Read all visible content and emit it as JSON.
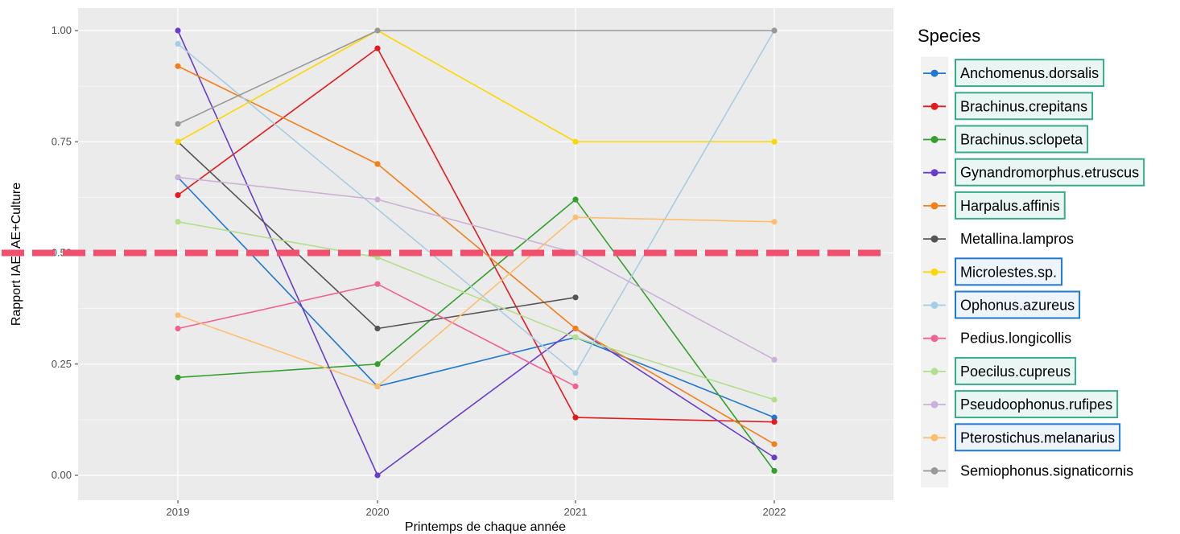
{
  "chart_data": {
    "type": "line",
    "x": [
      "2019",
      "2020",
      "2021",
      "2022"
    ],
    "xlabel": "Printemps de chaque année",
    "ylabel": "Rapport IAE/IAE+Culture",
    "ylim": [
      0,
      1
    ],
    "yticks": [
      "0.00",
      "0.25",
      "0.50",
      "0.75",
      "1.00"
    ],
    "grid": true,
    "reference_line": {
      "y": 0.5,
      "style": "dashed",
      "color": "#f0506e"
    },
    "legend": {
      "title": "Species",
      "position": "right"
    },
    "series": [
      {
        "name": "Anchomenus.dorsalis",
        "color": "#1f78d1",
        "values": [
          0.67,
          0.2,
          0.31,
          0.13
        ],
        "highlight": "green"
      },
      {
        "name": "Brachinus.crepitans",
        "color": "#e41a1c",
        "values": [
          0.63,
          0.96,
          0.13,
          0.12
        ],
        "highlight": "green"
      },
      {
        "name": "Brachinus.sclopeta",
        "color": "#33a02c",
        "values": [
          0.22,
          0.25,
          0.62,
          0.01
        ],
        "highlight": "green"
      },
      {
        "name": "Gynandromorphus.etruscus",
        "color": "#6a3dc9",
        "values": [
          1.0,
          0.0,
          0.33,
          0.04
        ],
        "highlight": "green"
      },
      {
        "name": "Harpalus.affinis",
        "color": "#f57f17",
        "values": [
          0.92,
          0.7,
          0.33,
          0.07
        ],
        "highlight": "green"
      },
      {
        "name": "Metallina.lampros",
        "color": "#555555",
        "values": [
          0.75,
          0.33,
          0.4,
          null
        ],
        "highlight": ""
      },
      {
        "name": "Microlestes.sp.",
        "color": "#ffd700",
        "values": [
          0.75,
          1.0,
          0.75,
          0.75
        ],
        "highlight": "blue"
      },
      {
        "name": "Ophonus.azureus",
        "color": "#a6cee3",
        "values": [
          0.97,
          null,
          0.23,
          1.0
        ],
        "highlight": "blue"
      },
      {
        "name": "Pedius.longicollis",
        "color": "#f06292",
        "values": [
          0.33,
          0.43,
          0.2,
          null
        ],
        "highlight": ""
      },
      {
        "name": "Poecilus.cupreus",
        "color": "#b2df8a",
        "values": [
          0.57,
          0.49,
          0.31,
          0.17
        ],
        "highlight": "green"
      },
      {
        "name": "Pseudoophonus.rufipes",
        "color": "#cab2d6",
        "values": [
          0.67,
          0.62,
          0.5,
          0.26
        ],
        "highlight": "green"
      },
      {
        "name": "Pterostichus.melanarius",
        "color": "#fdbf6f",
        "values": [
          0.36,
          0.2,
          0.58,
          0.57
        ],
        "highlight": "blue"
      },
      {
        "name": "Semiophonus.signaticornis",
        "color": "#999999",
        "values": [
          0.79,
          1.0,
          null,
          1.0
        ],
        "highlight": ""
      }
    ]
  },
  "highlight_colors": {
    "green": "#3aaa8c",
    "blue": "#1f78d1"
  }
}
